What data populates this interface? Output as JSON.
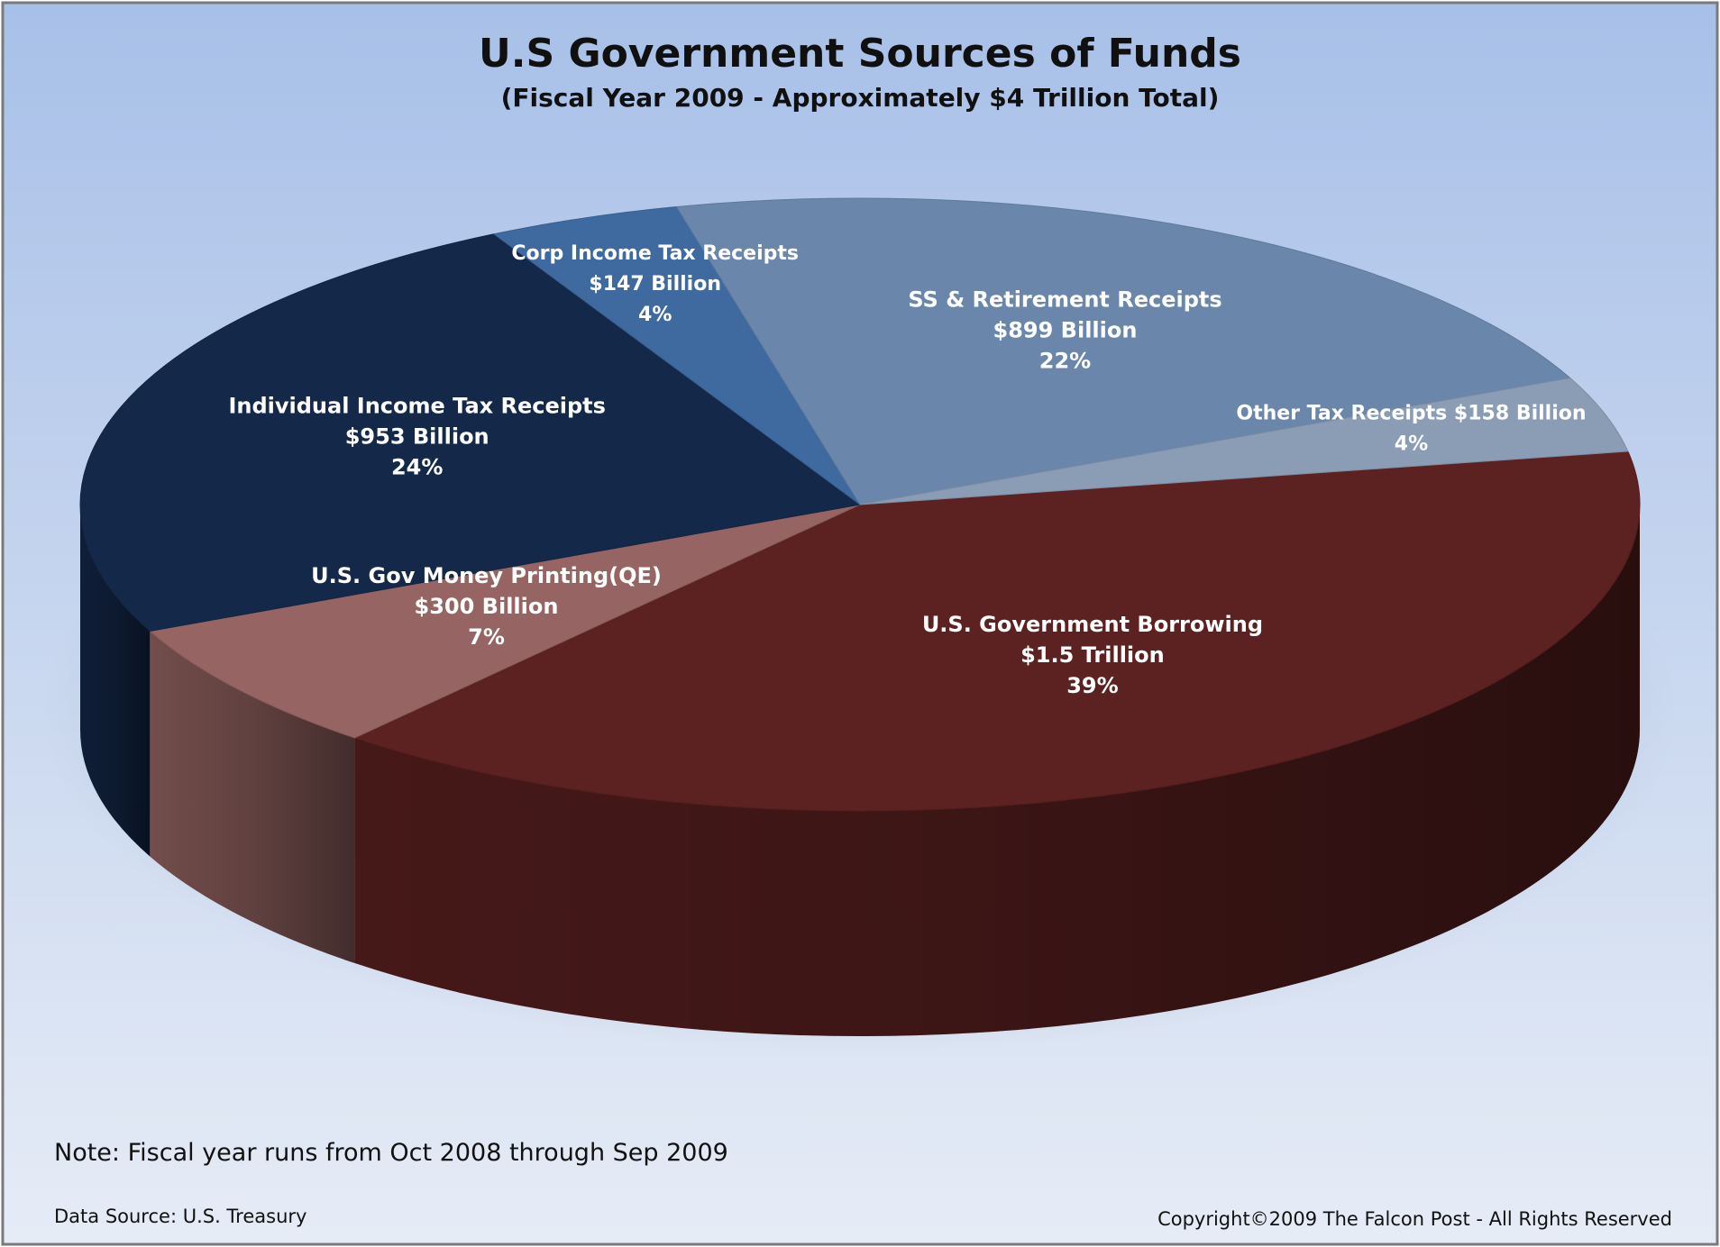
{
  "chart_data": {
    "type": "pie",
    "title": "U.S Government Sources of Funds",
    "subtitle": "(Fiscal Year 2009 - Approximately $4 Trillion Total)",
    "slices": [
      {
        "label": "U.S. Government Borrowing",
        "amount": "$1.5 Trillion",
        "percent_label": "39%",
        "value": 39,
        "color": "#5c2121"
      },
      {
        "label": "U.S. Gov Money Printing(QE)",
        "amount": "$300 Billion",
        "percent_label": "7%",
        "value": 7,
        "color": "#966563"
      },
      {
        "label": "Individual Income Tax Receipts",
        "amount": "$953 Billion",
        "percent_label": "24%",
        "value": 24,
        "color": "#14284a"
      },
      {
        "label": "Corp Income Tax Receipts",
        "amount": "$147 Billion",
        "percent_label": "4%",
        "value": 4,
        "color": "#3e6aa0"
      },
      {
        "label": "SS & Retirement Receipts",
        "amount": "$899 Billion",
        "percent_label": "22%",
        "value": 22,
        "color": "#6a87ab"
      },
      {
        "label": "Other Tax Receipts $158 Billion",
        "amount": "",
        "percent_label": "4%",
        "value": 4,
        "color": "#8b9db4"
      }
    ],
    "note": "Note: Fiscal year runs from Oct 2008 through Sep 2009",
    "source": "Data Source: U.S. Treasury",
    "copyright": "Copyright©2009 The Falcon Post - All Rights Reserved"
  }
}
